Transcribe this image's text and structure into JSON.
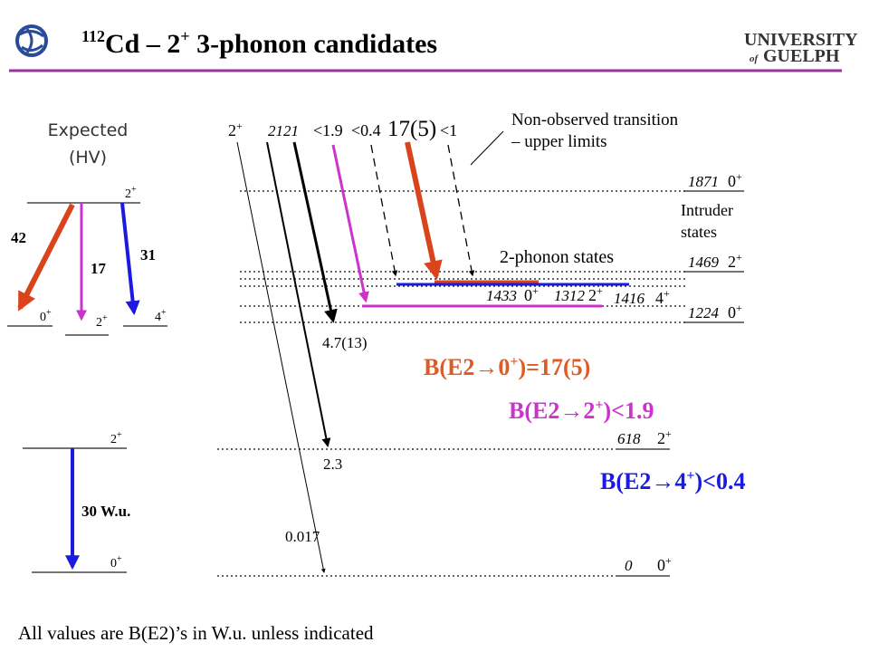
{
  "header": {
    "title": {
      "mass": "112",
      "symbol": "Cd – 2",
      "parity": "+",
      "rest": " 3-phonon candidates"
    },
    "logo": {
      "line1": "UNIVERSITY",
      "of": "of",
      "line2": "GUELPH"
    }
  },
  "expected": {
    "label": "Expected",
    "model": "(HV)",
    "initial": {
      "j": "2",
      "p": "+"
    },
    "finals": [
      {
        "j": "0",
        "p": "+"
      },
      {
        "j": "2",
        "p": "+"
      },
      {
        "j": "4",
        "p": "+"
      }
    ],
    "values": [
      "42",
      "17",
      "31"
    ]
  },
  "reference": {
    "upper": {
      "j": "2",
      "p": "+"
    },
    "lower": {
      "j": "0",
      "p": "+"
    },
    "value": "30 W.u."
  },
  "scheme": {
    "initial": {
      "j": "2",
      "p": "+",
      "energy": "2121"
    },
    "limits": [
      "<1.9",
      "<0.4",
      "17(5)",
      "<1"
    ],
    "note": [
      "Non-observed transition",
      "– upper limits"
    ],
    "levels": [
      {
        "energy": "1871",
        "j": "0",
        "p": "+"
      },
      {
        "energy": "1469",
        "j": "2",
        "p": "+"
      },
      {
        "energy": "1433",
        "j": "0",
        "p": "+"
      },
      {
        "energy": "1312",
        "j": "2",
        "p": "+"
      },
      {
        "energy": "1416",
        "j": "4",
        "p": "+"
      },
      {
        "energy": "1224",
        "j": "0",
        "p": "+"
      },
      {
        "energy": "618",
        "j": "2",
        "p": "+"
      },
      {
        "energy": "0",
        "j": "0",
        "p": "+"
      }
    ],
    "intruder": [
      "Intruder",
      "states"
    ],
    "two_phonon": "2-phonon states",
    "branches": [
      "4.7(13)",
      "2.3",
      "0.017"
    ]
  },
  "results": [
    {
      "prefix": "B(E2",
      "arrow": "→",
      "j": "0",
      "p": "+",
      "suffix": ")=17(5)"
    },
    {
      "prefix": "B(E2",
      "arrow": "→",
      "j": "2",
      "p": "+",
      "suffix": ")<1.9"
    },
    {
      "prefix": "B(E2",
      "arrow": "→",
      "j": "4",
      "p": "+",
      "suffix": ")<0.4"
    }
  ],
  "footer": "All values are B(E2)’s in W.u. unless indicated"
}
